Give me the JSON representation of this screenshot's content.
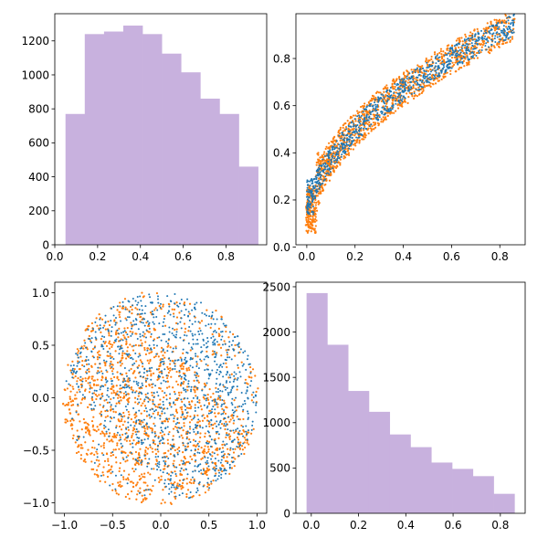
{
  "colors": {
    "histogram": "#c8b1de",
    "series_a": "#1f77b4",
    "series_b": "#ff7f0e",
    "axes": "#000000",
    "background": "#ffffff"
  },
  "chart_data": [
    {
      "type": "bar",
      "subplot": "top-left",
      "bin_edges": [
        0.05,
        0.14,
        0.23,
        0.32,
        0.41,
        0.5,
        0.59,
        0.68,
        0.77,
        0.86,
        0.95
      ],
      "values": [
        770,
        1240,
        1255,
        1290,
        1240,
        1125,
        1015,
        860,
        770,
        460
      ],
      "xlim": [
        0.0,
        0.99
      ],
      "ylim": [
        0,
        1360
      ],
      "xticks": [
        "0.0",
        "0.2",
        "0.4",
        "0.6",
        "0.8"
      ],
      "yticks": [
        "0",
        "200",
        "400",
        "600",
        "800",
        "1000",
        "1200"
      ],
      "grid": false,
      "title": "",
      "xlabel": "",
      "ylabel": ""
    },
    {
      "type": "scatter",
      "subplot": "top-right",
      "description_of_points": "two overlapping point clouds along a curved band from about (0, 0.05) up to (0.86, 0.95)",
      "series": [
        {
          "color": "#ff7f0e",
          "x_range": [
            0.0,
            0.86
          ],
          "y_range": [
            0.05,
            0.95
          ]
        },
        {
          "color": "#1f77b4",
          "x_range": [
            0.0,
            0.86
          ],
          "y_range": [
            0.12,
            0.95
          ]
        }
      ],
      "xlim": [
        -0.045,
        0.905
      ],
      "ylim": [
        0.01,
        0.99
      ],
      "xticks": [
        "0.0",
        "0.2",
        "0.4",
        "0.6",
        "0.8"
      ],
      "yticks": [
        "0.0",
        "0.2",
        "0.4",
        "0.6",
        "0.8"
      ],
      "grid": false,
      "title": "",
      "xlabel": "",
      "ylabel": ""
    },
    {
      "type": "scatter",
      "subplot": "bottom-left",
      "description_of_points": "points filling a unit disk; blue cloud and orange cloud overlap",
      "series": [
        {
          "color": "#1f77b4",
          "radius": 1.0
        },
        {
          "color": "#ff7f0e",
          "radius": 1.0
        }
      ],
      "xlim": [
        -1.1,
        1.1
      ],
      "ylim": [
        -1.1,
        1.1
      ],
      "xticks": [
        "−1.0",
        "−0.5",
        "0.0",
        "0.5",
        "1.0"
      ],
      "yticks": [
        "−1.0",
        "−0.5",
        "0.0",
        "0.5",
        "1.0"
      ],
      "grid": false,
      "title": "",
      "xlabel": "",
      "ylabel": ""
    },
    {
      "type": "bar",
      "subplot": "bottom-right",
      "bin_edges": [
        -0.02,
        0.068,
        0.156,
        0.244,
        0.332,
        0.42,
        0.508,
        0.596,
        0.684,
        0.772,
        0.86
      ],
      "values": [
        2430,
        1860,
        1350,
        1120,
        870,
        730,
        560,
        490,
        410,
        215
      ],
      "xlim": [
        -0.065,
        0.905
      ],
      "ylim": [
        0,
        2550
      ],
      "xticks": [
        "0.0",
        "0.2",
        "0.4",
        "0.6",
        "0.8"
      ],
      "yticks": [
        "0",
        "500",
        "1000",
        "1500",
        "2000",
        "2500"
      ],
      "grid": false,
      "title": "",
      "xlabel": "",
      "ylabel": ""
    }
  ]
}
